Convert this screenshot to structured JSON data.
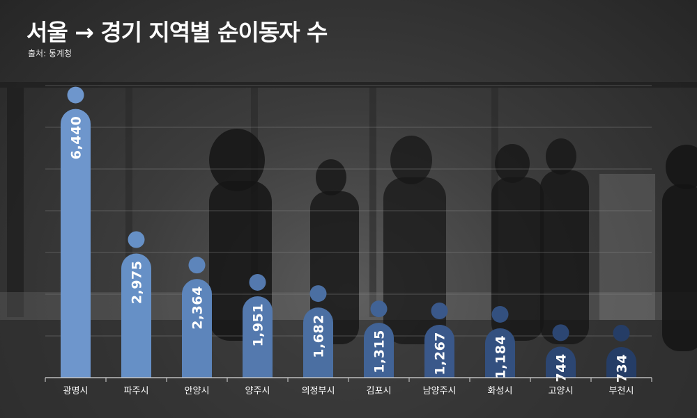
{
  "title": "서울 → 경기 지역별 순이동자 수",
  "source": "출처: 통계청",
  "chart_data": {
    "type": "bar",
    "categories": [
      "광명시",
      "파주시",
      "안양시",
      "양주시",
      "의정부시",
      "김포시",
      "남양주시",
      "화성시",
      "고양시",
      "부천시"
    ],
    "values": [
      6440,
      2975,
      2364,
      1951,
      1682,
      1315,
      1267,
      1184,
      744,
      734
    ],
    "value_labels": [
      "6,440",
      "2,975",
      "2,364",
      "1,951",
      "1,682",
      "1,315",
      "1,267",
      "1,184",
      "744",
      "734"
    ],
    "ylim": [
      0,
      7000
    ],
    "grid": true,
    "bar_colors": [
      "#6e96cc",
      "#6690c6",
      "#5d85bb",
      "#5479ae",
      "#4b6fa2",
      "#416396",
      "#3a588a",
      "#33507f",
      "#2c4672",
      "#253d66"
    ]
  }
}
